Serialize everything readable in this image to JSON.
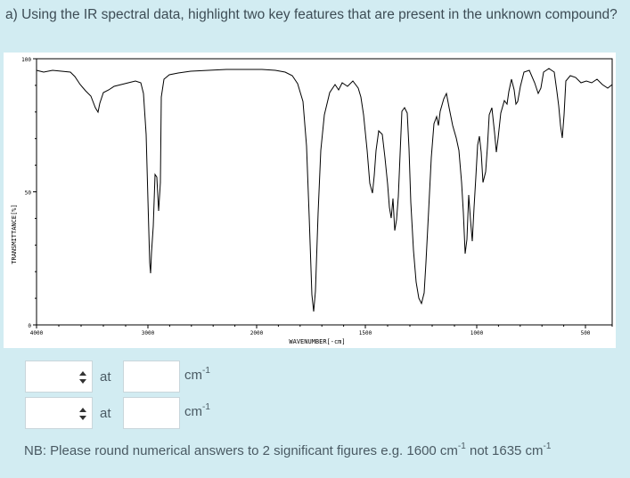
{
  "question": {
    "text": "a) Using the IR spectral data, highlight two key features that are present in the unknown compound?"
  },
  "spectrum": {
    "y_axis_label": "TRANSMITTANCE[%]",
    "x_axis_label": "WAVENUMBER[-cm]",
    "y_ticks": [
      {
        "value": 100,
        "label": "100"
      },
      {
        "value": 50,
        "label": "50"
      },
      {
        "value": 0,
        "label": "0"
      }
    ],
    "x_ticks": [
      {
        "value": 4000,
        "label": "4000"
      },
      {
        "value": 3000,
        "label": "3000"
      },
      {
        "value": 2000,
        "label": "2000"
      },
      {
        "value": 1500,
        "label": "1500"
      },
      {
        "value": 1000,
        "label": "1000"
      },
      {
        "value": 500,
        "label": "500"
      }
    ],
    "line_color": "#000000"
  },
  "answers": [
    {
      "at_label": "at",
      "value": "",
      "unit": "cm",
      "unit_exp": "-1"
    },
    {
      "at_label": "at",
      "value": "",
      "unit": "cm",
      "unit_exp": "-1"
    }
  ],
  "note": {
    "bold": "NB",
    "text": ": Please round numerical answers to 2 significant figures e.g. 1600 cm",
    "exp1": "-1",
    "text2": " not 1635 cm",
    "exp2": "-1"
  }
}
